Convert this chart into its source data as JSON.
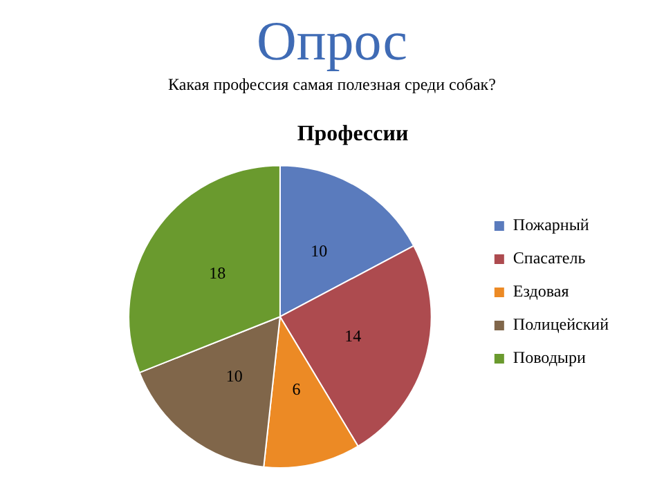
{
  "chart_data": {
    "type": "pie",
    "title": "Опрос",
    "subtitle": "Какая профессия самая полезная среди собак?",
    "annotations": [
      "Профессии"
    ],
    "categories": [
      "Пожарный",
      "Спасатель",
      "Ездовая",
      "Полицейский",
      "Поводыри"
    ],
    "values": [
      10,
      14,
      6,
      10,
      18
    ],
    "colors": [
      "#5a7bbd",
      "#ad4b4f",
      "#ec8a25",
      "#80664a",
      "#6a9a2e"
    ],
    "data_labels": true,
    "legend": "right"
  }
}
